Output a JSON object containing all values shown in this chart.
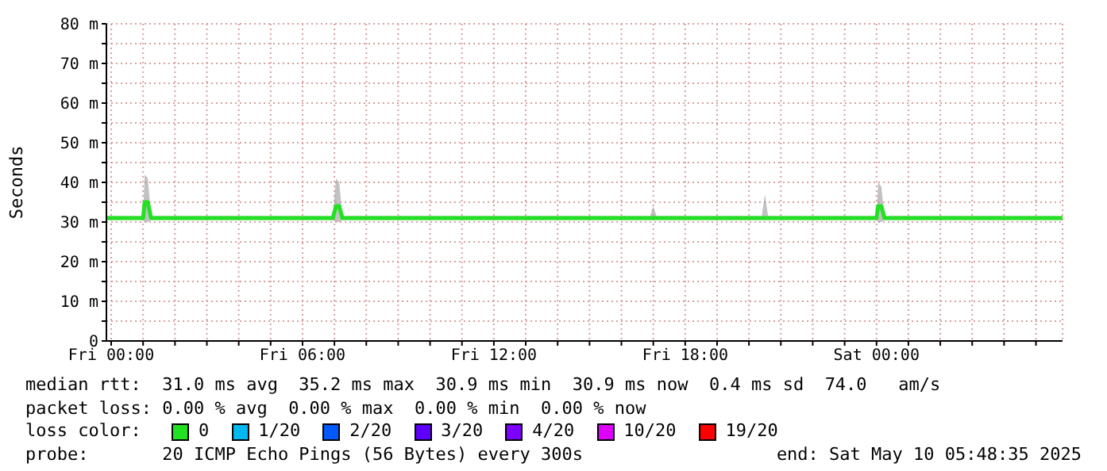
{
  "chart_data": {
    "type": "line",
    "ylabel": "Seconds",
    "legend_title": "loss color:",
    "legend": "bottom",
    "grid": true,
    "marker": "none",
    "line_style": "solid",
    "xlim": [
      "2025-05-08T23:51",
      "2025-05-10T05:50"
    ],
    "xticks": [
      {
        "value": "2025-05-09T00:00",
        "label": "Fri 00:00"
      },
      {
        "value": "2025-05-09T01:00",
        "label": null
      },
      {
        "value": "2025-05-09T02:00",
        "label": null
      },
      {
        "value": "2025-05-09T03:00",
        "label": null
      },
      {
        "value": "2025-05-09T04:00",
        "label": null
      },
      {
        "value": "2025-05-09T05:00",
        "label": null
      },
      {
        "value": "2025-05-09T06:00",
        "label": "Fri 06:00"
      },
      {
        "value": "2025-05-09T07:00",
        "label": null
      },
      {
        "value": "2025-05-09T08:00",
        "label": null
      },
      {
        "value": "2025-05-09T09:00",
        "label": null
      },
      {
        "value": "2025-05-09T10:00",
        "label": null
      },
      {
        "value": "2025-05-09T11:00",
        "label": null
      },
      {
        "value": "2025-05-09T12:00",
        "label": "Fri 12:00"
      },
      {
        "value": "2025-05-09T13:00",
        "label": null
      },
      {
        "value": "2025-05-09T14:00",
        "label": null
      },
      {
        "value": "2025-05-09T15:00",
        "label": null
      },
      {
        "value": "2025-05-09T16:00",
        "label": null
      },
      {
        "value": "2025-05-09T17:00",
        "label": null
      },
      {
        "value": "2025-05-09T18:00",
        "label": "Fri 18:00"
      },
      {
        "value": "2025-05-09T19:00",
        "label": null
      },
      {
        "value": "2025-05-09T20:00",
        "label": null
      },
      {
        "value": "2025-05-09T21:00",
        "label": null
      },
      {
        "value": "2025-05-09T22:00",
        "label": null
      },
      {
        "value": "2025-05-09T23:00",
        "label": null
      },
      {
        "value": "2025-05-10T00:00",
        "label": "Sat 00:00"
      },
      {
        "value": "2025-05-10T01:00",
        "label": null
      },
      {
        "value": "2025-05-10T02:00",
        "label": null
      },
      {
        "value": "2025-05-10T03:00",
        "label": null
      },
      {
        "value": "2025-05-10T04:00",
        "label": null
      },
      {
        "value": "2025-05-10T05:00",
        "label": null
      }
    ],
    "ylim": [
      0,
      80
    ],
    "yticks": [
      0,
      {
        "value": 5,
        "label": null
      },
      {
        "value": 10,
        "label": "10 m"
      },
      {
        "value": 15,
        "label": null
      },
      {
        "value": 20,
        "label": "20 m"
      },
      {
        "value": 25,
        "label": null
      },
      {
        "value": 30,
        "label": "30 m"
      },
      {
        "value": 35,
        "label": null
      },
      {
        "value": 40,
        "label": "40 m"
      },
      {
        "value": 45,
        "label": null
      },
      {
        "value": 50,
        "label": "50 m"
      },
      {
        "value": 55,
        "label": null
      },
      {
        "value": 60,
        "label": "60 m"
      },
      {
        "value": 65,
        "label": null
      },
      {
        "value": 70,
        "label": "70 m"
      },
      {
        "value": 75,
        "label": null
      },
      {
        "value": 80,
        "label": "80 m"
      }
    ],
    "x": [
      "2025-05-08T23:51",
      "2025-05-09T01:00",
      "2025-05-09T01:03",
      "2025-05-09T01:09",
      "2025-05-09T01:15",
      "2025-05-09T06:57",
      "2025-05-09T07:03",
      "2025-05-09T07:09",
      "2025-05-09T07:15",
      "2025-05-09T16:54",
      "2025-05-09T17:00",
      "2025-05-09T17:06",
      "2025-05-09T20:24",
      "2025-05-09T20:30",
      "2025-05-09T20:36",
      "2025-05-10T00:00",
      "2025-05-10T00:03",
      "2025-05-10T00:09",
      "2025-05-10T00:15",
      "2025-05-10T05:50"
    ],
    "series": [
      {
        "name": "0",
        "color": "#22e022",
        "values": [
          31,
          31,
          35,
          35,
          31,
          31,
          34,
          34,
          31,
          31,
          31,
          31,
          31,
          31,
          31,
          31,
          34,
          34,
          31,
          31
        ],
        "lower": [
          30.5,
          30.5,
          30,
          30,
          30.5,
          30.5,
          30,
          30,
          30.5,
          30.5,
          30.5,
          30.5,
          30.5,
          30.5,
          30.5,
          30.5,
          30,
          30,
          30.5,
          30.5
        ],
        "upper": [
          31.5,
          31.5,
          42,
          41,
          31.5,
          31.5,
          41,
          40,
          31.5,
          31.5,
          34,
          31.5,
          31.5,
          37,
          31.5,
          31.5,
          40,
          39,
          31.5,
          31.5
        ]
      },
      {
        "name": "1/20",
        "color": "#00b8f0",
        "values": [
          null,
          null,
          null,
          null,
          null,
          null,
          null,
          null,
          null,
          null,
          null,
          null,
          null,
          null,
          null,
          null,
          null,
          null,
          null,
          null
        ]
      },
      {
        "name": "2/20",
        "color": "#0059ff",
        "values": [
          null,
          null,
          null,
          null,
          null,
          null,
          null,
          null,
          null,
          null,
          null,
          null,
          null,
          null,
          null,
          null,
          null,
          null,
          null,
          null
        ]
      },
      {
        "name": "3/20",
        "color": "#5e00ff",
        "values": [
          null,
          null,
          null,
          null,
          null,
          null,
          null,
          null,
          null,
          null,
          null,
          null,
          null,
          null,
          null,
          null,
          null,
          null,
          null,
          null
        ]
      },
      {
        "name": "4/20",
        "color": "#7e00ff",
        "values": [
          null,
          null,
          null,
          null,
          null,
          null,
          null,
          null,
          null,
          null,
          null,
          null,
          null,
          null,
          null,
          null,
          null,
          null,
          null,
          null
        ]
      },
      {
        "name": "10/20",
        "color": "#dd00ff",
        "values": [
          null,
          null,
          null,
          null,
          null,
          null,
          null,
          null,
          null,
          null,
          null,
          null,
          null,
          null,
          null,
          null,
          null,
          null,
          null,
          null
        ]
      },
      {
        "name": "19/20",
        "color": "#ff0000",
        "values": [
          null,
          null,
          null,
          null,
          null,
          null,
          null,
          null,
          null,
          null,
          null,
          null,
          null,
          null,
          null,
          null,
          null,
          null,
          null,
          null
        ]
      }
    ],
    "annotations": [
      "median rtt:  31.0 ms avg  35.2 ms max  30.9 ms min  30.9 ms now  0.4 ms sd  74.0   am/s",
      "packet loss: 0.00 % avg  0.00 % max  0.00 % min  0.00 % now",
      "probe:       20 ICMP Echo Pings (56 Bytes) every 300s",
      "end: Sat May 10 05:48:35 2025"
    ]
  }
}
